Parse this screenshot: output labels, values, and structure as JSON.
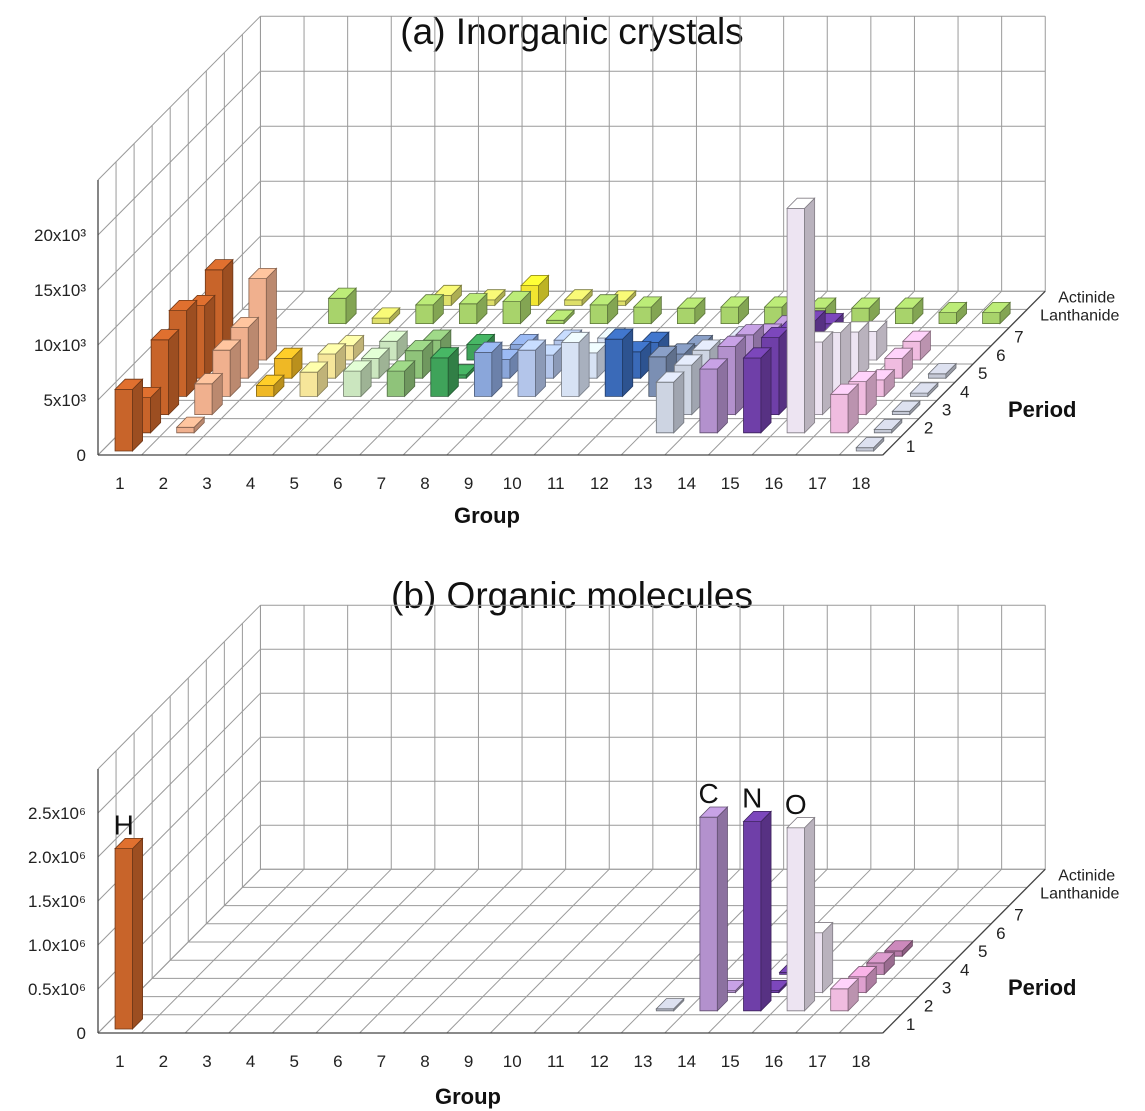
{
  "chart_data": [
    {
      "type": "bar3d",
      "title": "(a) Inorganic crystals",
      "xlabel": "Group",
      "ylabel": "Period",
      "x_ticks": [
        "1",
        "2",
        "3",
        "4",
        "5",
        "6",
        "7",
        "8",
        "9",
        "10",
        "11",
        "12",
        "13",
        "14",
        "15",
        "16",
        "17",
        "18"
      ],
      "y_ticks": [
        "1",
        "2",
        "3",
        "4",
        "5",
        "6",
        "7",
        "Lanthanide",
        "Actinide"
      ],
      "z_ticks": [
        "0",
        "5x10³",
        "10x10³",
        "15x10³",
        "20x10³"
      ],
      "zlim": [
        0,
        20000
      ],
      "bars": [
        {
          "g": 1,
          "p": 1,
          "v": 5600,
          "c": "#c8642a"
        },
        {
          "g": 1,
          "p": 2,
          "v": 3200,
          "c": "#c8642a"
        },
        {
          "g": 1,
          "p": 3,
          "v": 6800,
          "c": "#c8642a"
        },
        {
          "g": 1,
          "p": 4,
          "v": 7800,
          "c": "#c8642a"
        },
        {
          "g": 1,
          "p": 5,
          "v": 6600,
          "c": "#c8642a"
        },
        {
          "g": 1,
          "p": 6,
          "v": 8200,
          "c": "#c8642a"
        },
        {
          "g": 2,
          "p": 2,
          "v": 500,
          "c": "#f0b08e"
        },
        {
          "g": 2,
          "p": 3,
          "v": 2800,
          "c": "#f0b08e"
        },
        {
          "g": 2,
          "p": 4,
          "v": 4200,
          "c": "#f0b08e"
        },
        {
          "g": 2,
          "p": 5,
          "v": 4600,
          "c": "#f0b08e"
        },
        {
          "g": 2,
          "p": 6,
          "v": 7400,
          "c": "#f0b08e"
        },
        {
          "g": 3,
          "p": 4,
          "v": 1000,
          "c": "#efb825"
        },
        {
          "g": 3,
          "p": 5,
          "v": 1800,
          "c": "#efb825"
        },
        {
          "g": 3,
          "p": 8,
          "v": 2300,
          "c": "#a8d36b"
        },
        {
          "g": 4,
          "p": 4,
          "v": 2200,
          "c": "#f6e69a"
        },
        {
          "g": 4,
          "p": 5,
          "v": 2200,
          "c": "#f6e69a"
        },
        {
          "g": 4,
          "p": 6,
          "v": 1300,
          "c": "#f6e69a"
        },
        {
          "g": 4,
          "p": 8,
          "v": 500,
          "c": "#dedf6a"
        },
        {
          "g": 5,
          "p": 4,
          "v": 2300,
          "c": "#cbe6bf"
        },
        {
          "g": 5,
          "p": 5,
          "v": 1800,
          "c": "#cbe6bf"
        },
        {
          "g": 5,
          "p": 6,
          "v": 1700,
          "c": "#cbe6bf"
        },
        {
          "g": 5,
          "p": 8,
          "v": 1700,
          "c": "#a8d36b"
        },
        {
          "g": 5,
          "p": 9,
          "v": 900,
          "c": "#dedf6a"
        },
        {
          "g": 6,
          "p": 4,
          "v": 2300,
          "c": "#8fc37a"
        },
        {
          "g": 6,
          "p": 5,
          "v": 2500,
          "c": "#8fc37a"
        },
        {
          "g": 6,
          "p": 6,
          "v": 1800,
          "c": "#8fc37a"
        },
        {
          "g": 6,
          "p": 8,
          "v": 1800,
          "c": "#a8d36b"
        },
        {
          "g": 6,
          "p": 9,
          "v": 500,
          "c": "#dedf6a"
        },
        {
          "g": 7,
          "p": 4,
          "v": 3500,
          "c": "#3fa35a"
        },
        {
          "g": 7,
          "p": 5,
          "v": 300,
          "c": "#3fa35a"
        },
        {
          "g": 7,
          "p": 6,
          "v": 1400,
          "c": "#3fa35a"
        },
        {
          "g": 7,
          "p": 8,
          "v": 2000,
          "c": "#a8d36b"
        },
        {
          "g": 7,
          "p": 9,
          "v": 1800,
          "c": "#f2e530"
        },
        {
          "g": 8,
          "p": 4,
          "v": 4000,
          "c": "#8aa6da"
        },
        {
          "g": 8,
          "p": 5,
          "v": 1700,
          "c": "#8aa6da"
        },
        {
          "g": 8,
          "p": 6,
          "v": 1400,
          "c": "#8aa6da"
        },
        {
          "g": 8,
          "p": 8,
          "v": 300,
          "c": "#a8d36b"
        },
        {
          "g": 8,
          "p": 9,
          "v": 500,
          "c": "#dedf6a"
        },
        {
          "g": 9,
          "p": 4,
          "v": 4200,
          "c": "#b3c5ea"
        },
        {
          "g": 9,
          "p": 5,
          "v": 2100,
          "c": "#b3c5ea"
        },
        {
          "g": 9,
          "p": 6,
          "v": 1800,
          "c": "#b3c5ea"
        },
        {
          "g": 9,
          "p": 8,
          "v": 1700,
          "c": "#a8d36b"
        },
        {
          "g": 9,
          "p": 9,
          "v": 400,
          "c": "#dedf6a"
        },
        {
          "g": 10,
          "p": 4,
          "v": 4900,
          "c": "#d7e2f4"
        },
        {
          "g": 10,
          "p": 5,
          "v": 2300,
          "c": "#d7e2f4"
        },
        {
          "g": 10,
          "p": 6,
          "v": 2000,
          "c": "#d7e2f4"
        },
        {
          "g": 10,
          "p": 8,
          "v": 1500,
          "c": "#a8d36b"
        },
        {
          "g": 11,
          "p": 4,
          "v": 5200,
          "c": "#3a6ab8"
        },
        {
          "g": 11,
          "p": 5,
          "v": 2400,
          "c": "#3a6ab8"
        },
        {
          "g": 11,
          "p": 6,
          "v": 1600,
          "c": "#3a6ab8"
        },
        {
          "g": 11,
          "p": 8,
          "v": 1400,
          "c": "#a8d36b"
        },
        {
          "g": 12,
          "p": 4,
          "v": 3600,
          "c": "#7b8fb3"
        },
        {
          "g": 12,
          "p": 5,
          "v": 2200,
          "c": "#7b8fb3"
        },
        {
          "g": 12,
          "p": 6,
          "v": 1300,
          "c": "#7b8fb3"
        },
        {
          "g": 12,
          "p": 8,
          "v": 1500,
          "c": "#a8d36b"
        },
        {
          "g": 13,
          "p": 2,
          "v": 4600,
          "c": "#cdd4e2"
        },
        {
          "g": 13,
          "p": 3,
          "v": 4500,
          "c": "#cdd4e2"
        },
        {
          "g": 13,
          "p": 4,
          "v": 4200,
          "c": "#cdd4e2"
        },
        {
          "g": 13,
          "p": 5,
          "v": 2600,
          "c": "#cdd4e2"
        },
        {
          "g": 13,
          "p": 6,
          "v": 2100,
          "c": "#cdd4e2"
        },
        {
          "g": 13,
          "p": 8,
          "v": 1500,
          "c": "#a8d36b"
        },
        {
          "g": 14,
          "p": 2,
          "v": 5800,
          "c": "#b391cd"
        },
        {
          "g": 14,
          "p": 3,
          "v": 6200,
          "c": "#b391cd"
        },
        {
          "g": 14,
          "p": 4,
          "v": 5600,
          "c": "#b391cd"
        },
        {
          "g": 14,
          "p": 5,
          "v": 4000,
          "c": "#b391cd"
        },
        {
          "g": 14,
          "p": 6,
          "v": 3100,
          "c": "#b391cd"
        },
        {
          "g": 14,
          "p": 8,
          "v": 1400,
          "c": "#a8d36b"
        },
        {
          "g": 15,
          "p": 2,
          "v": 6800,
          "c": "#6f3fa8"
        },
        {
          "g": 15,
          "p": 3,
          "v": 7000,
          "c": "#6f3fa8"
        },
        {
          "g": 15,
          "p": 4,
          "v": 6200,
          "c": "#6f3fa8"
        },
        {
          "g": 15,
          "p": 5,
          "v": 5200,
          "c": "#6f3fa8"
        },
        {
          "g": 15,
          "p": 6,
          "v": 3300,
          "c": "#6f3fa8"
        },
        {
          "g": 15,
          "p": 8,
          "v": 1400,
          "c": "#a8d36b"
        },
        {
          "g": 16,
          "p": 2,
          "v": 20400,
          "c": "#ede4f2"
        },
        {
          "g": 16,
          "p": 3,
          "v": 6600,
          "c": "#ede4f2"
        },
        {
          "g": 16,
          "p": 4,
          "v": 5800,
          "c": "#ede4f2"
        },
        {
          "g": 16,
          "p": 5,
          "v": 4200,
          "c": "#ede4f2"
        },
        {
          "g": 16,
          "p": 6,
          "v": 2600,
          "c": "#ede4f2"
        },
        {
          "g": 16,
          "p": 8,
          "v": 1400,
          "c": "#a8d36b"
        },
        {
          "g": 17,
          "p": 2,
          "v": 3500,
          "c": "#f0bce0"
        },
        {
          "g": 17,
          "p": 3,
          "v": 3000,
          "c": "#f0bce0"
        },
        {
          "g": 17,
          "p": 4,
          "v": 1500,
          "c": "#f0bce0"
        },
        {
          "g": 17,
          "p": 5,
          "v": 1800,
          "c": "#f0bce0"
        },
        {
          "g": 17,
          "p": 6,
          "v": 1700,
          "c": "#f0bce0"
        },
        {
          "g": 17,
          "p": 8,
          "v": 1000,
          "c": "#a8d36b"
        },
        {
          "g": 18,
          "p": 1,
          "v": 300,
          "c": "#c5c9d6"
        },
        {
          "g": 18,
          "p": 2,
          "v": 300,
          "c": "#c5c9d6"
        },
        {
          "g": 18,
          "p": 3,
          "v": 300,
          "c": "#c5c9d6"
        },
        {
          "g": 18,
          "p": 4,
          "v": 300,
          "c": "#c5c9d6"
        },
        {
          "g": 18,
          "p": 5,
          "v": 400,
          "c": "#c5c9d6"
        },
        {
          "g": 18,
          "p": 8,
          "v": 1000,
          "c": "#a8d36b"
        }
      ]
    },
    {
      "type": "bar3d",
      "title": "(b) Organic molecules",
      "xlabel": "Group",
      "ylabel": "Period",
      "x_ticks": [
        "1",
        "2",
        "3",
        "4",
        "5",
        "6",
        "7",
        "8",
        "9",
        "10",
        "11",
        "12",
        "13",
        "14",
        "15",
        "16",
        "17",
        "18"
      ],
      "y_ticks": [
        "1",
        "2",
        "3",
        "4",
        "5",
        "6",
        "7",
        "Lanthanide",
        "Actinide"
      ],
      "z_ticks": [
        "0",
        "0.5x10⁶",
        "1.0x10⁶",
        "1.5x10⁶",
        "2.0x10⁶",
        "2.5x10⁶"
      ],
      "zlim": [
        0,
        2500000
      ],
      "bars": [
        {
          "g": 1,
          "p": 1,
          "v": 2050000,
          "c": "#c8642a",
          "label": "H"
        },
        {
          "g": 13,
          "p": 2,
          "v": 20000,
          "c": "#c5c9d6"
        },
        {
          "g": 14,
          "p": 2,
          "v": 2200000,
          "c": "#b391cd",
          "label": "C"
        },
        {
          "g": 14,
          "p": 3,
          "v": 20000,
          "c": "#b391cd"
        },
        {
          "g": 15,
          "p": 2,
          "v": 2150000,
          "c": "#6f3fa8",
          "label": "N"
        },
        {
          "g": 15,
          "p": 3,
          "v": 20000,
          "c": "#6f3fa8"
        },
        {
          "g": 15,
          "p": 4,
          "v": 20000,
          "c": "#6f3fa8"
        },
        {
          "g": 16,
          "p": 2,
          "v": 2080000,
          "c": "#ede4f2",
          "label": "O"
        },
        {
          "g": 16,
          "p": 3,
          "v": 680000,
          "c": "#ede4f2"
        },
        {
          "g": 17,
          "p": 2,
          "v": 250000,
          "c": "#f0bce0"
        },
        {
          "g": 17,
          "p": 3,
          "v": 180000,
          "c": "#dea0cf"
        },
        {
          "g": 17,
          "p": 4,
          "v": 130000,
          "c": "#c58bb8"
        },
        {
          "g": 17,
          "p": 5,
          "v": 60000,
          "c": "#b67aa8"
        }
      ]
    }
  ]
}
